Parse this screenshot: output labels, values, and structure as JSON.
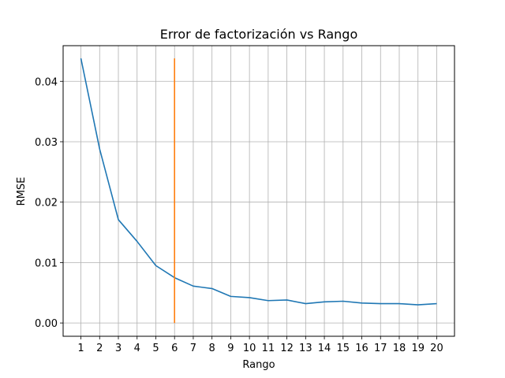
{
  "chart_data": {
    "type": "line",
    "title": "Error de factorización vs Rango",
    "xlabel": "Rango",
    "ylabel": "RMSE",
    "x": [
      1,
      2,
      3,
      4,
      5,
      6,
      7,
      8,
      9,
      10,
      11,
      12,
      13,
      14,
      15,
      16,
      17,
      18,
      19,
      20
    ],
    "x_ticks": [
      "1",
      "2",
      "3",
      "4",
      "5",
      "6",
      "7",
      "8",
      "9",
      "10",
      "11",
      "12",
      "13",
      "14",
      "15",
      "16",
      "17",
      "18",
      "19",
      "20"
    ],
    "y_ticks": [
      "0.00",
      "0.01",
      "0.02",
      "0.03",
      "0.04"
    ],
    "xlim": [
      0.05,
      20.95
    ],
    "ylim": [
      -0.0022,
      0.0459
    ],
    "grid": true,
    "series": [
      {
        "color": "#1f77b4",
        "values": [
          0.0438,
          0.0288,
          0.0171,
          0.0135,
          0.0095,
          0.0075,
          0.0061,
          0.0057,
          0.0044,
          0.0042,
          0.0037,
          0.0038,
          0.0032,
          0.0035,
          0.0036,
          0.0033,
          0.0032,
          0.0032,
          0.003,
          0.0032
        ]
      }
    ],
    "vline": {
      "x": 6,
      "y0": 0.0,
      "y1": 0.0438,
      "color": "#ff7f0e"
    }
  }
}
